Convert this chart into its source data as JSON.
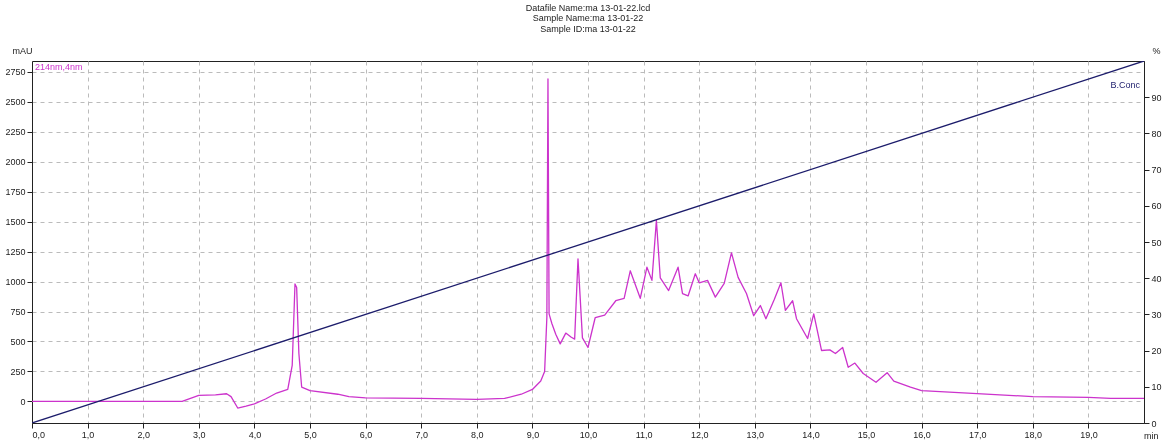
{
  "chart_data": {
    "type": "line",
    "title": "Datafile Name:ma 13-01-22.lcd",
    "subtitle": "Sample Name:ma 13-01-22\nSample ID:ma 13-01-22",
    "xlabel": "min",
    "ylabel": "mAU",
    "y2label": "%",
    "xlim": [
      0,
      20
    ],
    "xticks": [
      {
        "value": 0,
        "label": "0,0"
      },
      {
        "value": 1,
        "label": "1,0"
      },
      {
        "value": 2,
        "label": "2,0"
      },
      {
        "value": 3,
        "label": "3,0"
      },
      {
        "value": 4,
        "label": "4,0"
      },
      {
        "value": 5,
        "label": "5,0"
      },
      {
        "value": 6,
        "label": "6,0"
      },
      {
        "value": 7,
        "label": "7,0"
      },
      {
        "value": 8,
        "label": "8,0"
      },
      {
        "value": 9,
        "label": "9,0"
      },
      {
        "value": 10,
        "label": "10,0"
      },
      {
        "value": 11,
        "label": "11,0"
      },
      {
        "value": 12,
        "label": "12,0"
      },
      {
        "value": 13,
        "label": "13,0"
      },
      {
        "value": 14,
        "label": "14,0"
      },
      {
        "value": 15,
        "label": "15,0"
      },
      {
        "value": 16,
        "label": "16,0"
      },
      {
        "value": 17,
        "label": "17,0"
      },
      {
        "value": 18,
        "label": "18,0"
      },
      {
        "value": 19,
        "label": "19,0"
      }
    ],
    "ylim": [
      -180,
      2840
    ],
    "yticks": [
      0,
      250,
      500,
      750,
      1000,
      1250,
      1500,
      1750,
      2000,
      2250,
      2500,
      2750
    ],
    "y2lim": [
      0,
      100
    ],
    "y2ticks": [
      0,
      10,
      20,
      30,
      40,
      50,
      60,
      70,
      80,
      90
    ],
    "grid": true,
    "series": [
      {
        "name": "214nm,4nm",
        "color": "#cc33cc",
        "x": [
          0,
          1,
          2,
          2.7,
          2.85,
          3.0,
          3.3,
          3.5,
          3.58,
          3.7,
          3.85,
          4.0,
          4.2,
          4.4,
          4.6,
          4.68,
          4.73,
          4.76,
          4.8,
          4.85,
          5.0,
          5.5,
          5.7,
          6.0,
          7.0,
          8.0,
          8.5,
          8.8,
          9.0,
          9.15,
          9.22,
          9.26,
          9.28,
          9.3,
          9.35,
          9.42,
          9.5,
          9.6,
          9.7,
          9.76,
          9.82,
          9.9,
          10.0,
          10.13,
          10.3,
          10.5,
          10.65,
          10.76,
          10.94,
          11.06,
          11.15,
          11.23,
          11.3,
          11.45,
          11.62,
          11.7,
          11.8,
          11.93,
          12.0,
          12.15,
          12.29,
          12.45,
          12.58,
          12.7,
          12.85,
          12.98,
          13.1,
          13.2,
          13.35,
          13.47,
          13.55,
          13.68,
          13.75,
          13.95,
          14.06,
          14.2,
          14.35,
          14.45,
          14.58,
          14.68,
          14.8,
          14.95,
          15.18,
          15.38,
          15.5,
          15.8,
          16.0,
          17.0,
          18.0,
          19.0,
          19.4,
          20
        ],
        "values": [
          0,
          0,
          0,
          0,
          25,
          50,
          55,
          64,
          40,
          -55,
          -40,
          -20,
          20,
          70,
          100,
          300,
          980,
          950,
          400,
          120,
          90,
          60,
          40,
          30,
          25,
          17,
          25,
          60,
          100,
          170,
          250,
          700,
          2690,
          730,
          650,
          560,
          480,
          570,
          535,
          520,
          1190,
          530,
          450,
          700,
          720,
          840,
          860,
          1090,
          860,
          1120,
          1010,
          1510,
          1030,
          925,
          1120,
          900,
          880,
          1065,
          990,
          1010,
          870,
          985,
          1240,
          1035,
          900,
          715,
          800,
          690,
          850,
          990,
          760,
          840,
          690,
          525,
          730,
          425,
          430,
          400,
          450,
          285,
          320,
          233,
          160,
          240,
          170,
          120,
          90,
          65,
          40,
          33,
          25,
          25
        ]
      },
      {
        "name": "B.Conc",
        "color": "#1c1c6b",
        "axis": "y2",
        "x": [
          0,
          20
        ],
        "values": [
          0,
          100
        ]
      }
    ]
  }
}
